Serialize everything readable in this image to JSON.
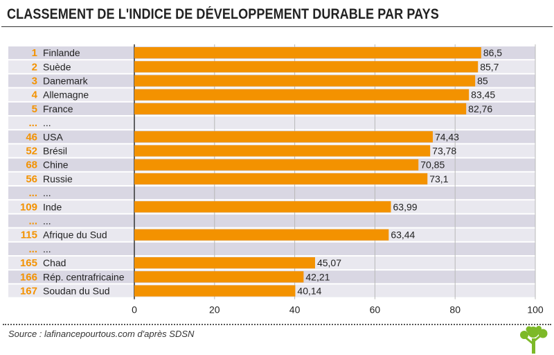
{
  "title": "CLASSEMENT DE L'INDICE DE DÉVELOPPEMENT DURABLE PAR PAYS",
  "source": "Source : lafinancepourtous.com d'après SDSN",
  "colors": {
    "bar": "#F39200",
    "rank": "#F39200",
    "row_dark": "#D9D7E3",
    "row_light": "#E9E8EF",
    "grid": "#B8B8B8",
    "text": "#222222"
  },
  "logo_icon": "tree-icon",
  "chart_data": {
    "type": "bar",
    "orientation": "horizontal",
    "title": "CLASSEMENT DE L'INDICE DE DÉVELOPPEMENT DURABLE PAR PAYS",
    "xlabel": "",
    "ylabel": "",
    "xlim": [
      0,
      100
    ],
    "xticks": [
      0,
      20,
      40,
      60,
      80,
      100
    ],
    "grid": true,
    "rows": [
      {
        "rank": "1",
        "country": "Finlande",
        "value": 86.5,
        "label": "86,5"
      },
      {
        "rank": "2",
        "country": "Suède",
        "value": 85.7,
        "label": "85,7"
      },
      {
        "rank": "3",
        "country": "Danemark",
        "value": 85,
        "label": "85"
      },
      {
        "rank": "4",
        "country": "Allemagne",
        "value": 83.45,
        "label": "83,45"
      },
      {
        "rank": "5",
        "country": "France",
        "value": 82.76,
        "label": "82,76"
      },
      {
        "rank": "...",
        "country": "...",
        "value": null,
        "label": null
      },
      {
        "rank": "46",
        "country": "USA",
        "value": 74.43,
        "label": "74,43"
      },
      {
        "rank": "52",
        "country": "Brésil",
        "value": 73.78,
        "label": "73,78"
      },
      {
        "rank": "68",
        "country": "Chine",
        "value": 70.85,
        "label": "70,85"
      },
      {
        "rank": "56",
        "country": "Russie",
        "value": 73.1,
        "label": "73,1"
      },
      {
        "rank": "...",
        "country": "...",
        "value": null,
        "label": null
      },
      {
        "rank": "109",
        "country": "Inde",
        "value": 63.99,
        "label": "63,99"
      },
      {
        "rank": "...",
        "country": "...",
        "value": null,
        "label": null
      },
      {
        "rank": "115",
        "country": "Afrique du Sud",
        "value": 63.44,
        "label": "63,44"
      },
      {
        "rank": "...",
        "country": "...",
        "value": null,
        "label": null
      },
      {
        "rank": "165",
        "country": "Chad",
        "value": 45.07,
        "label": "45,07"
      },
      {
        "rank": "166",
        "country": "Rép. centrafricaine",
        "value": 42.21,
        "label": "42,21"
      },
      {
        "rank": "167",
        "country": "Soudan du Sud",
        "value": 40.14,
        "label": "40,14"
      }
    ]
  }
}
